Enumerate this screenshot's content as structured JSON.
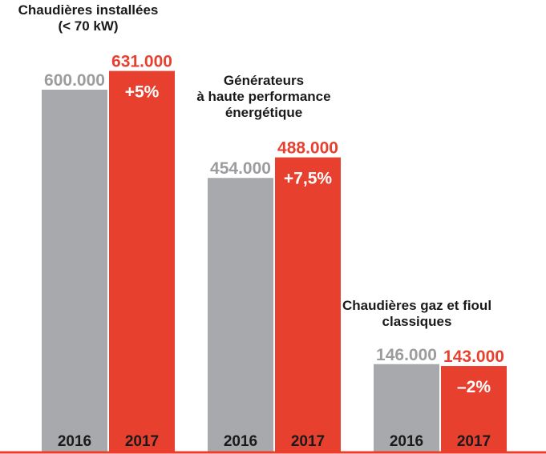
{
  "colors": {
    "y2016": "#a7a9ac",
    "y2017": "#e8402f",
    "label2016": "#9b9c9e",
    "label2017": "#e8402f",
    "baseline": "#ee3b2b"
  },
  "chart_data": {
    "type": "bar",
    "series": [
      {
        "year": "2016"
      },
      {
        "year": "2017"
      }
    ],
    "groups": [
      {
        "title_lines": [
          "Chaudières installées",
          "(< 70 kW)"
        ],
        "values": [
          600000,
          631000
        ],
        "value_labels": [
          "600.000",
          "631.000"
        ],
        "change": "+5%",
        "years": [
          "2016",
          "2017"
        ]
      },
      {
        "title_lines": [
          "Générateurs",
          "à haute performance",
          "énergétique"
        ],
        "values": [
          454000,
          488000
        ],
        "value_labels": [
          "454.000",
          "488.000"
        ],
        "change": "+7,5%",
        "years": [
          "2016",
          "2017"
        ]
      },
      {
        "title_lines": [
          "Chaudières gaz et fioul",
          "classiques"
        ],
        "values": [
          146000,
          143000
        ],
        "value_labels": [
          "146.000",
          "143.000"
        ],
        "change": "–2%",
        "years": [
          "2016",
          "2017"
        ]
      }
    ],
    "ylim": [
      0,
      600000
    ],
    "grid": false,
    "legend": "none"
  }
}
